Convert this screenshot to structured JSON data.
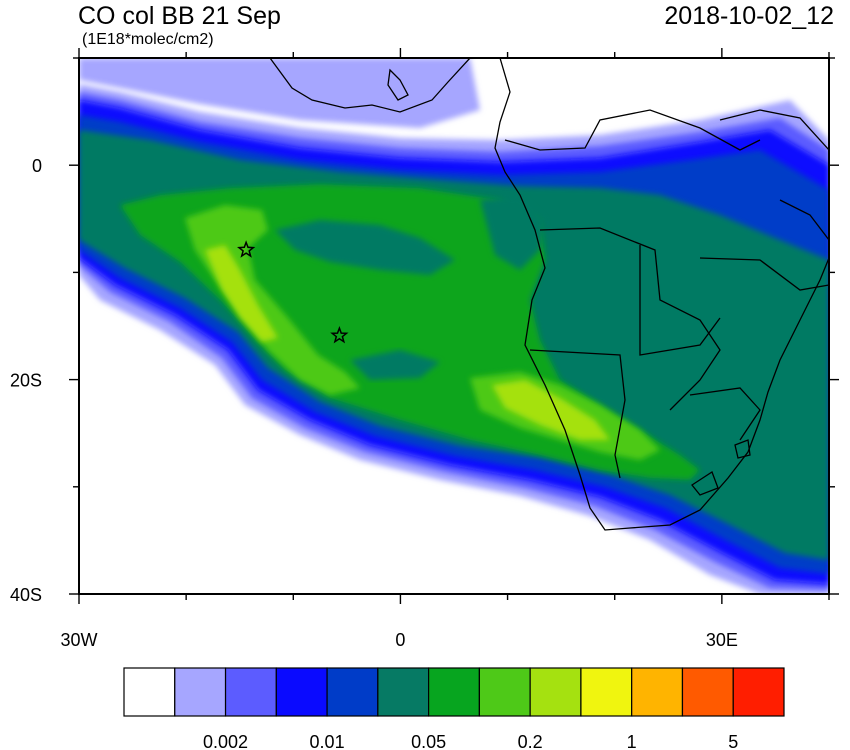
{
  "header": {
    "title": "CO col BB 21 Sep",
    "timestamp": "2018-10-02_12",
    "units": "(1E18*molec/cm2)"
  },
  "map": {
    "projection": "lat-lon",
    "lon_range": [
      -30,
      40
    ],
    "lat_range": [
      -40,
      10
    ],
    "x_ticks": [
      {
        "value": -30,
        "label": "30W"
      },
      {
        "value": 0,
        "label": "0"
      },
      {
        "value": 30,
        "label": "30E"
      }
    ],
    "y_ticks": [
      {
        "value": 0,
        "label": "0"
      },
      {
        "value": -20,
        "label": "20S"
      },
      {
        "value": -40,
        "label": "40S"
      }
    ],
    "stations": [
      {
        "name": "star-marker",
        "lon": -14.4,
        "lat": -7.9
      },
      {
        "name": "star-marker",
        "lon": -5.7,
        "lat": -15.9
      }
    ]
  },
  "colorbar": {
    "colors": [
      "#ffffff",
      "#a6a6ff",
      "#5c5cff",
      "#0a0aff",
      "#003cc8",
      "#067a64",
      "#07a51f",
      "#4ec918",
      "#a5e110",
      "#f0f50f",
      "#ffb400",
      "#ff5a00",
      "#ff1e00"
    ],
    "labels": [
      "0.002",
      "0.01",
      "0.05",
      "0.2",
      "1",
      "5"
    ]
  }
}
